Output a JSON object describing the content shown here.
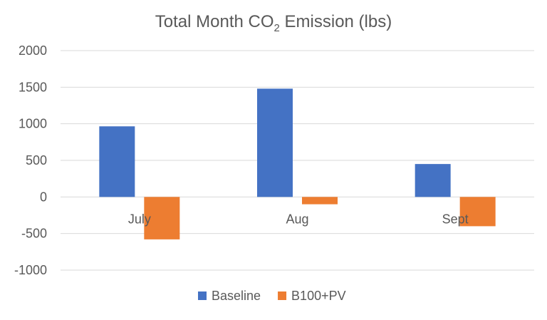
{
  "chart_data": {
    "type": "bar",
    "title": {
      "main": "Total Month CO",
      "subscript": "2",
      "suffix": " Emission (lbs)"
    },
    "categories": [
      "July",
      "Aug",
      "Sept"
    ],
    "series": [
      {
        "name": "Baseline",
        "color": "#4472c4",
        "values": [
          965,
          1480,
          450
        ]
      },
      {
        "name": "B100+PV",
        "color": "#ed7d31",
        "values": [
          -580,
          -100,
          -400
        ]
      }
    ],
    "ylim": [
      -1000,
      2000
    ],
    "yticks": [
      2000,
      1500,
      1000,
      500,
      0,
      -500,
      -1000
    ],
    "grid": true,
    "legend_position": "bottom"
  }
}
